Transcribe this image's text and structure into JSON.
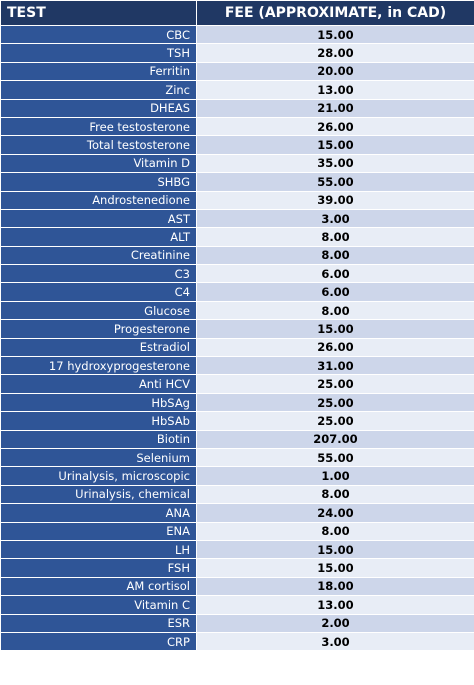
{
  "table": {
    "headers": [
      "TEST",
      "FEE (APPROXIMATE, in CAD)"
    ],
    "rows": [
      [
        "CBC",
        "15.00"
      ],
      [
        "TSH",
        "28.00"
      ],
      [
        "Ferritin",
        "20.00"
      ],
      [
        "Zinc",
        "13.00"
      ],
      [
        "DHEAS",
        "21.00"
      ],
      [
        "Free testosterone",
        "26.00"
      ],
      [
        "Total testosterone",
        "15.00"
      ],
      [
        "Vitamin D",
        "35.00"
      ],
      [
        "SHBG",
        "55.00"
      ],
      [
        "Androstenedione",
        "39.00"
      ],
      [
        "AST",
        "3.00"
      ],
      [
        "ALT",
        "8.00"
      ],
      [
        "Creatinine",
        "8.00"
      ],
      [
        "C3",
        "6.00"
      ],
      [
        "C4",
        "6.00"
      ],
      [
        "Glucose",
        "8.00"
      ],
      [
        "Progesterone",
        "15.00"
      ],
      [
        "Estradiol",
        "26.00"
      ],
      [
        "17 hydroxyprogesterone",
        "31.00"
      ],
      [
        "Anti HCV",
        "25.00"
      ],
      [
        "HbSAg",
        "25.00"
      ],
      [
        "HbSAb",
        "25.00"
      ],
      [
        "Biotin",
        "207.00"
      ],
      [
        "Selenium",
        "55.00"
      ],
      [
        "Urinalysis, microscopic",
        "1.00"
      ],
      [
        "Urinalysis, chemical",
        "8.00"
      ],
      [
        "ANA",
        "24.00"
      ],
      [
        "ENA",
        "8.00"
      ],
      [
        "LH",
        "15.00"
      ],
      [
        "FSH",
        "15.00"
      ],
      [
        "AM cortisol",
        "18.00"
      ],
      [
        "Vitamin C",
        "13.00"
      ],
      [
        "ESR",
        "2.00"
      ],
      [
        "CRP",
        "3.00"
      ]
    ]
  }
}
